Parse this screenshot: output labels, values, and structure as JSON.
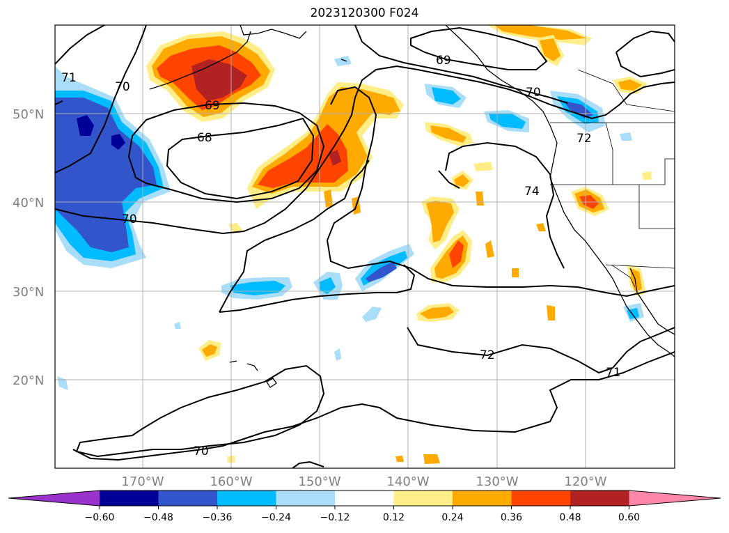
{
  "map": {
    "title": "2023120300 F024",
    "lat_labels": [
      "50°N",
      "40°N",
      "30°N",
      "20°N"
    ],
    "lon_labels": [
      "170°W",
      "160°W",
      "150°W",
      "140°W",
      "130°W",
      "120°W"
    ],
    "contour_labels": [
      "71",
      "70",
      "69",
      "68",
      "70",
      "69",
      "70",
      "72",
      "74",
      "72",
      "71",
      "70"
    ],
    "colorbar": {
      "ticks": [
        "−0.60",
        "−0.48",
        "−0.36",
        "−0.24",
        "−0.12",
        "0.12",
        "0.24",
        "0.36",
        "0.48",
        "0.60"
      ],
      "colors": [
        "#9933cc",
        "#000099",
        "#3355cc",
        "#00bbff",
        "#aaddf8",
        "#ffffff",
        "#ffee88",
        "#ffaa00",
        "#ff4400",
        "#b22222",
        "#ff88aa"
      ]
    },
    "colors": {
      "neg_light": "#aaddf8",
      "neg_mid": "#00bbff",
      "neg_strong": "#3355cc",
      "neg_max": "#000099",
      "pos_light": "#ffee88",
      "pos_mid": "#ffaa00",
      "pos_strong": "#ff4400",
      "pos_max": "#b22222"
    }
  }
}
